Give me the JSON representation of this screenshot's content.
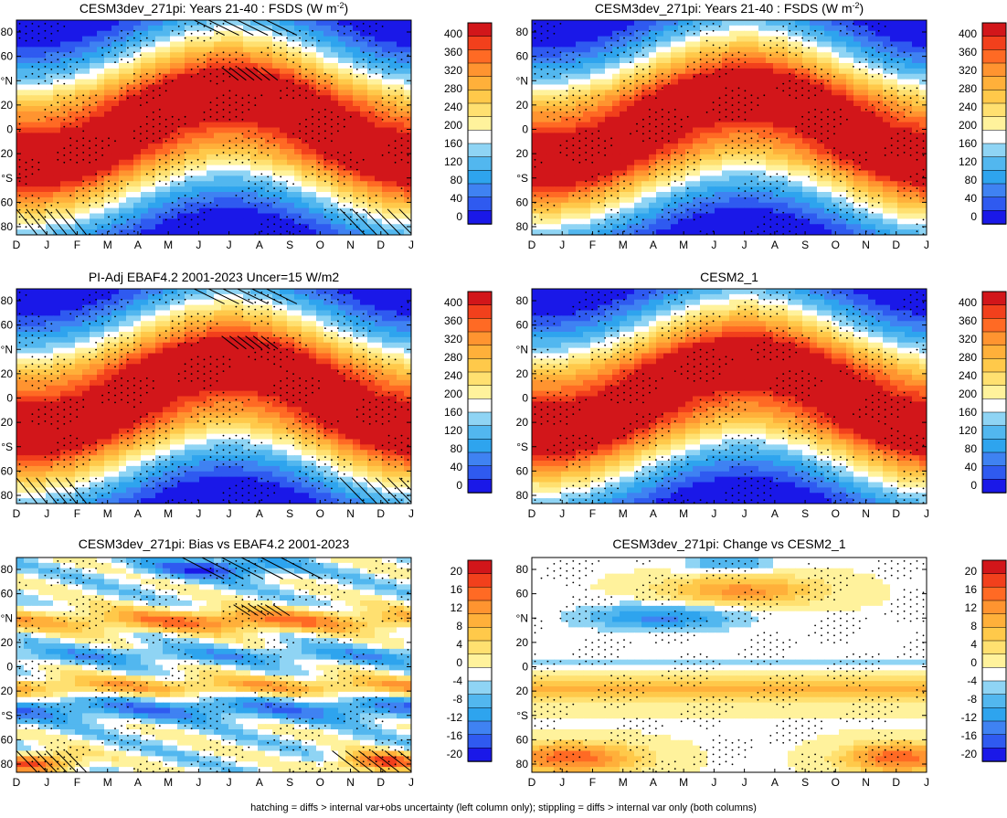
{
  "footer": "hatching = diffs > internal var+obs uncertainty (left column only); stippling = diffs > internal var only (both columns)",
  "chart_data": [
    {
      "type": "heatmap",
      "title": "CESM3dev_271pi: Years 21-40 : FSDS (W m",
      "title_sup": "-2",
      "title_tail": ")",
      "field": "clim",
      "x_ticks": [
        "D",
        "J",
        "F",
        "M",
        "A",
        "M",
        "J",
        "J",
        "A",
        "S",
        "O",
        "N",
        "D",
        "J"
      ],
      "y_ticks": [
        "80",
        "60",
        "°N",
        "20",
        "0",
        "20",
        "°S",
        "60",
        "80"
      ],
      "colorbar_labels": [
        "400",
        "360",
        "320",
        "280",
        "240",
        "200",
        "160",
        "120",
        "80",
        "40",
        "0"
      ],
      "hatching": true,
      "stippling": true
    },
    {
      "type": "heatmap",
      "title": "CESM3dev_271pi: Years 21-40 : FSDS (W m",
      "title_sup": "-2",
      "title_tail": ")",
      "field": "clim",
      "x_ticks": [
        "D",
        "J",
        "F",
        "M",
        "A",
        "M",
        "J",
        "J",
        "A",
        "S",
        "O",
        "N",
        "D",
        "J"
      ],
      "y_ticks": [
        "80",
        "60",
        "°N",
        "20",
        "0",
        "20",
        "°S",
        "60",
        "80"
      ],
      "colorbar_labels": [
        "400",
        "360",
        "320",
        "280",
        "240",
        "200",
        "160",
        "120",
        "80",
        "40",
        "0"
      ],
      "hatching": false,
      "stippling": true
    },
    {
      "type": "heatmap",
      "title": "PI-Adj EBAF4.2 2001-2023 Uncer=15 W/m2",
      "field": "clim",
      "x_ticks": [
        "D",
        "J",
        "F",
        "M",
        "A",
        "M",
        "J",
        "J",
        "A",
        "S",
        "O",
        "N",
        "D",
        "J"
      ],
      "y_ticks": [
        "80",
        "60",
        "°N",
        "20",
        "0",
        "20",
        "°S",
        "60",
        "80"
      ],
      "colorbar_labels": [
        "400",
        "360",
        "320",
        "280",
        "240",
        "200",
        "160",
        "120",
        "80",
        "40",
        "0"
      ],
      "hatching": true,
      "stippling": true
    },
    {
      "type": "heatmap",
      "title": "CESM2_1",
      "field": "clim",
      "x_ticks": [
        "D",
        "J",
        "F",
        "M",
        "A",
        "M",
        "J",
        "J",
        "A",
        "S",
        "O",
        "N",
        "D",
        "J"
      ],
      "y_ticks": [
        "80",
        "60",
        "°N",
        "20",
        "0",
        "20",
        "°S",
        "60",
        "80"
      ],
      "colorbar_labels": [
        "400",
        "360",
        "320",
        "280",
        "240",
        "200",
        "160",
        "120",
        "80",
        "40",
        "0"
      ],
      "hatching": false,
      "stippling": true
    },
    {
      "type": "heatmap",
      "title": "CESM3dev_271pi: Bias vs EBAF4.2 2001-2023",
      "field": "bias",
      "x_ticks": [
        "D",
        "J",
        "F",
        "M",
        "A",
        "M",
        "J",
        "J",
        "A",
        "S",
        "O",
        "N",
        "D",
        "J"
      ],
      "y_ticks": [
        "80",
        "60",
        "°N",
        "20",
        "0",
        "20",
        "°S",
        "60",
        "80"
      ],
      "colorbar_labels": [
        "20",
        "16",
        "12",
        "8",
        "4",
        "0",
        "-4",
        "-8",
        "-12",
        "-16",
        "-20"
      ],
      "hatching": true,
      "stippling": true
    },
    {
      "type": "heatmap",
      "title": "CESM3dev_271pi: Change vs CESM2_1",
      "field": "change",
      "x_ticks": [
        "D",
        "J",
        "F",
        "M",
        "A",
        "M",
        "J",
        "J",
        "A",
        "S",
        "O",
        "N",
        "D",
        "J"
      ],
      "y_ticks": [
        "80",
        "60",
        "°N",
        "20",
        "0",
        "20",
        "°S",
        "60",
        "80"
      ],
      "colorbar_labels": [
        "20",
        "16",
        "12",
        "8",
        "4",
        "0",
        "-4",
        "-8",
        "-12",
        "-16",
        "-20"
      ],
      "hatching": false,
      "stippling": true
    }
  ]
}
